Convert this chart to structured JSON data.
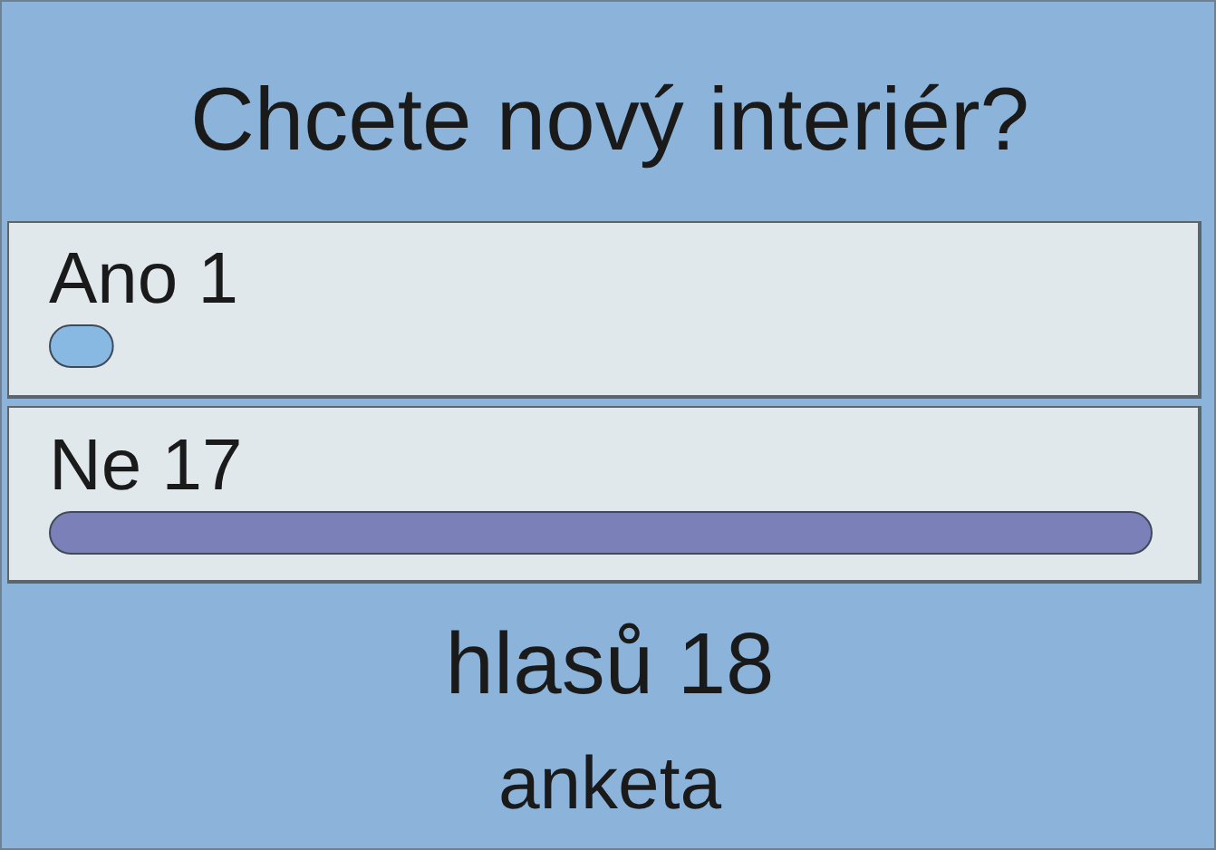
{
  "chart_data": {
    "type": "bar",
    "orientation": "horizontal",
    "title": "Chcete nový interiér?",
    "categories": [
      "Ano",
      "Ne"
    ],
    "values": [
      1,
      17
    ],
    "colors": [
      "#87b9e2",
      "#7b80b8"
    ],
    "data_labels": true,
    "tick_labels": "y",
    "annotations": [
      "hlasů 18",
      "anketa"
    ]
  }
}
